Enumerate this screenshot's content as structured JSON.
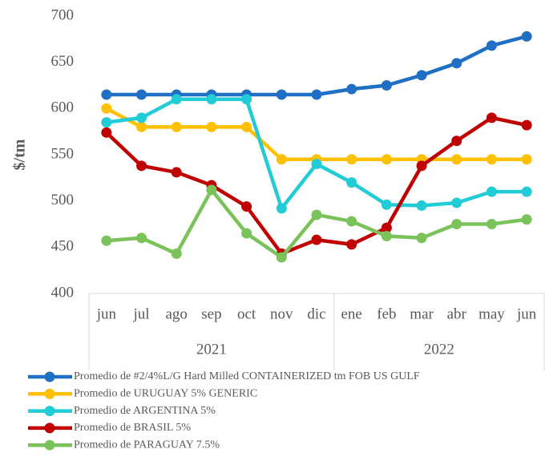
{
  "chart_data": {
    "type": "line",
    "y_label": "$/tm",
    "categories": [
      "jun",
      "jul",
      "ago",
      "sep",
      "oct",
      "nov",
      "dic",
      "ene",
      "feb",
      "mar",
      "abr",
      "may",
      "jun"
    ],
    "groups": [
      {
        "label": "2021",
        "count": 7
      },
      {
        "label": "2022",
        "count": 6
      }
    ],
    "ylim": [
      400,
      700
    ],
    "yticks": [
      400,
      450,
      500,
      550,
      600,
      650,
      700
    ],
    "grid": false,
    "series": [
      {
        "name": "Promedio de #2/4%L/G Hard Milled CONTAINERIZED tm FOB US GULF",
        "color": "#1f6fc5",
        "values": [
          615,
          615,
          615,
          615,
          615,
          615,
          615,
          621,
          625,
          636,
          649,
          668,
          678
        ]
      },
      {
        "name": "Promedio de URUGUAY 5% GENERIC",
        "color": "#ffc000",
        "values": [
          600,
          580,
          580,
          580,
          580,
          545,
          545,
          545,
          545,
          545,
          545,
          545,
          545
        ]
      },
      {
        "name": "Promedio de ARGENTINA 5%",
        "color": "#22ccd6",
        "values": [
          585,
          590,
          610,
          610,
          610,
          492,
          540,
          520,
          496,
          495,
          498,
          510,
          510
        ]
      },
      {
        "name": "Promedio de BRASIL 5%",
        "color": "#c00000",
        "values": [
          574,
          538,
          531,
          517,
          494,
          443,
          458,
          453,
          471,
          538,
          565,
          590,
          582
        ]
      },
      {
        "name": "Promedio de PARAGUAY 7.5%",
        "color": "#7ac25a",
        "values": [
          457,
          460,
          443,
          512,
          465,
          439,
          485,
          478,
          462,
          460,
          475,
          475,
          480
        ]
      }
    ]
  }
}
